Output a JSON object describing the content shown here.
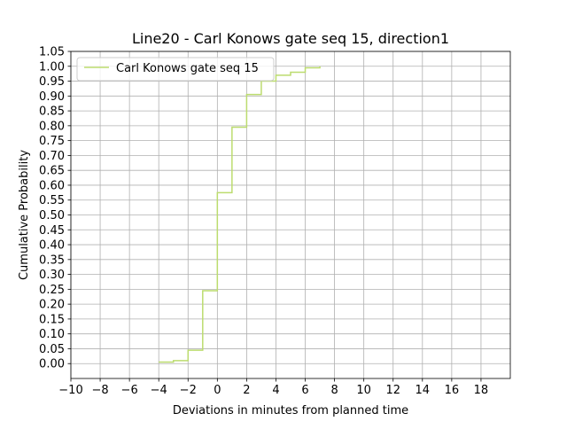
{
  "chart_data": {
    "type": "line",
    "title": "Line20 - Carl Konows gate seq 15, direction1",
    "xlabel": "Deviations in minutes from planned time",
    "ylabel": "Cumulative Probability",
    "xlim": [
      -10,
      20
    ],
    "ylim": [
      -0.05,
      1.05
    ],
    "xticks": [
      -10,
      -8,
      -6,
      -4,
      -2,
      0,
      2,
      4,
      6,
      8,
      10,
      12,
      14,
      16,
      18
    ],
    "xtick_labels": [
      "−10",
      "−8",
      "−6",
      "−4",
      "−2",
      "0",
      "2",
      "4",
      "6",
      "8",
      "10",
      "12",
      "14",
      "16",
      "18"
    ],
    "yticks": [
      0.0,
      0.05,
      0.1,
      0.15,
      0.2,
      0.25,
      0.3,
      0.35,
      0.4,
      0.45,
      0.5,
      0.55,
      0.6,
      0.65,
      0.7,
      0.75,
      0.8,
      0.85,
      0.9,
      0.95,
      1.0,
      1.05
    ],
    "ytick_labels": [
      "0.00",
      "0.05",
      "0.10",
      "0.15",
      "0.20",
      "0.25",
      "0.30",
      "0.35",
      "0.40",
      "0.45",
      "0.50",
      "0.55",
      "0.60",
      "0.65",
      "0.70",
      "0.75",
      "0.80",
      "0.85",
      "0.90",
      "0.95",
      "1.00",
      "1.05"
    ],
    "grid": true,
    "legend_position": "top-left",
    "series": [
      {
        "name": "Carl Konows gate seq 15",
        "color": "#bcdc6f",
        "step": "post",
        "x": [
          -4,
          -3,
          -2,
          -1,
          0,
          1,
          2,
          3,
          4,
          5,
          6,
          7
        ],
        "y": [
          0.005,
          0.01,
          0.045,
          0.245,
          0.575,
          0.795,
          0.905,
          0.95,
          0.97,
          0.98,
          0.995,
          1.0
        ]
      }
    ]
  }
}
